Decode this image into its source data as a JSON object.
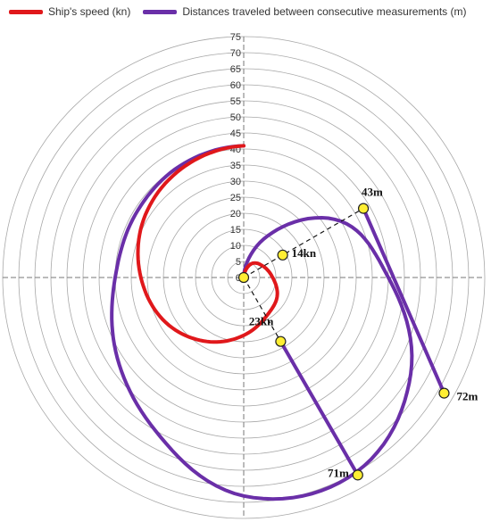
{
  "chart_data": {
    "type": "polar-line",
    "radial_axis": {
      "min": 0,
      "max": 75,
      "step": 5,
      "ticks": [
        "0",
        "5",
        "10",
        "15",
        "20",
        "25",
        "30",
        "35",
        "40",
        "45",
        "50",
        "55",
        "60",
        "65",
        "70",
        "75"
      ]
    },
    "grid": true,
    "legend_position": "top",
    "series": [
      {
        "name": "Ship's speed (kn)",
        "color": "#e0181b",
        "points": [
          {
            "angle": 0,
            "r": 0
          },
          {
            "angle": 30,
            "r": 5
          },
          {
            "angle": 60,
            "r": 7
          },
          {
            "angle": 90,
            "r": 9
          },
          {
            "angle": 120,
            "r": 12
          },
          {
            "angle": 150,
            "r": 14
          },
          {
            "angle": 180,
            "r": 18
          },
          {
            "angle": 210,
            "r": 23
          },
          {
            "angle": 240,
            "r": 28
          },
          {
            "angle": 270,
            "r": 32
          },
          {
            "angle": 300,
            "r": 36
          },
          {
            "angle": 330,
            "r": 39
          },
          {
            "angle": 360,
            "r": 41
          }
        ]
      },
      {
        "name": "Distances traveled between consecutive measurements (m)",
        "color": "#6a2fa8",
        "points": [
          {
            "angle": 0,
            "r": 0
          },
          {
            "angle": 30,
            "r": 15
          },
          {
            "angle": 60,
            "r": 35
          },
          {
            "angle": 90,
            "r": 45
          },
          {
            "angle": 120,
            "r": 60
          },
          {
            "angle": 150,
            "r": 70
          },
          {
            "angle": 180,
            "r": 68
          },
          {
            "angle": 210,
            "r": 55
          },
          {
            "angle": 240,
            "r": 46
          },
          {
            "angle": 270,
            "r": 40
          },
          {
            "angle": 300,
            "r": 39
          },
          {
            "angle": 330,
            "r": 40
          },
          {
            "angle": 360,
            "r": 41
          }
        ]
      }
    ],
    "annotations": [
      {
        "label": "14kn",
        "angle": 60,
        "r": 14
      },
      {
        "label": "23kn",
        "angle": 150,
        "r": 23
      },
      {
        "label": "43m",
        "angle": 60,
        "r": 43
      },
      {
        "label": "72m",
        "angle": 120,
        "r": 72
      },
      {
        "label": "71m",
        "angle": 150,
        "r": 71
      }
    ]
  }
}
